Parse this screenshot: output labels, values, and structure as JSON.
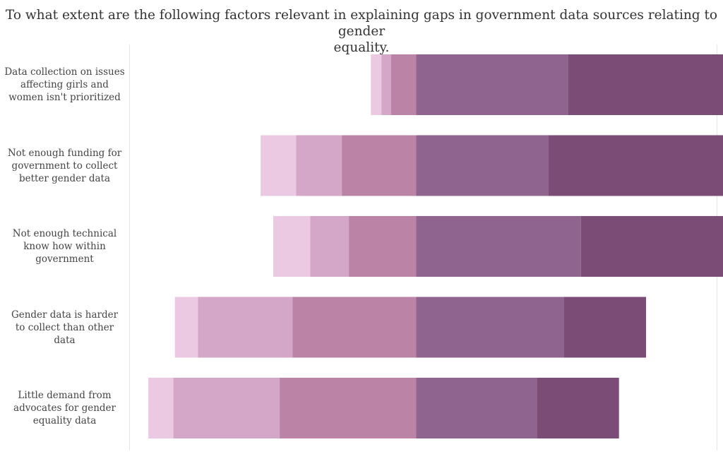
{
  "chart_data": {
    "type": "bar",
    "orientation": "horizontal",
    "stacked": true,
    "diverging": true,
    "title_lines": [
      "To what extent are the following factors relevant in explaining gaps in government data sources relating to gender",
      "equality."
    ],
    "categories": [
      "Data collection on issues affecting girls and women isn't prioritized",
      "Not enough funding for government to collect better gender data",
      "Not enough technical know how within government",
      "Gender data is harder to collect than other data",
      "Little demand from advocates for gender equality data"
    ],
    "category_label_lines": [
      [
        "Data collection on issues",
        "affecting girls and",
        "women isn't prioritized"
      ],
      [
        "Not enough funding for",
        "government to collect",
        "better gender data"
      ],
      [
        "Not enough technical",
        "know how within",
        "government"
      ],
      [
        "Gender data is harder",
        "to collect than other",
        "data"
      ],
      [
        "Little demand from",
        "advocates for gender",
        "equality data"
      ]
    ],
    "x_min": -52,
    "series": [
      {
        "color": "#ecc9e3",
        "values": [
          2.1,
          7.1,
          7.4,
          4.6,
          5.0
        ]
      },
      {
        "color": "#d4a6c7",
        "values": [
          1.9,
          9.1,
          7.7,
          18.9,
          21.2
        ]
      },
      {
        "color": "#bb84a6",
        "values": [
          5.0,
          14.8,
          13.4,
          24.6,
          27.2
        ]
      },
      {
        "color": "#8f648f",
        "values": [
          30.3,
          26.4,
          32.9,
          29.5,
          24.1
        ]
      },
      {
        "color": "#7a4c76",
        "values": [
          55.3,
          36.5,
          32.7,
          16.4,
          16.4
        ]
      }
    ]
  }
}
